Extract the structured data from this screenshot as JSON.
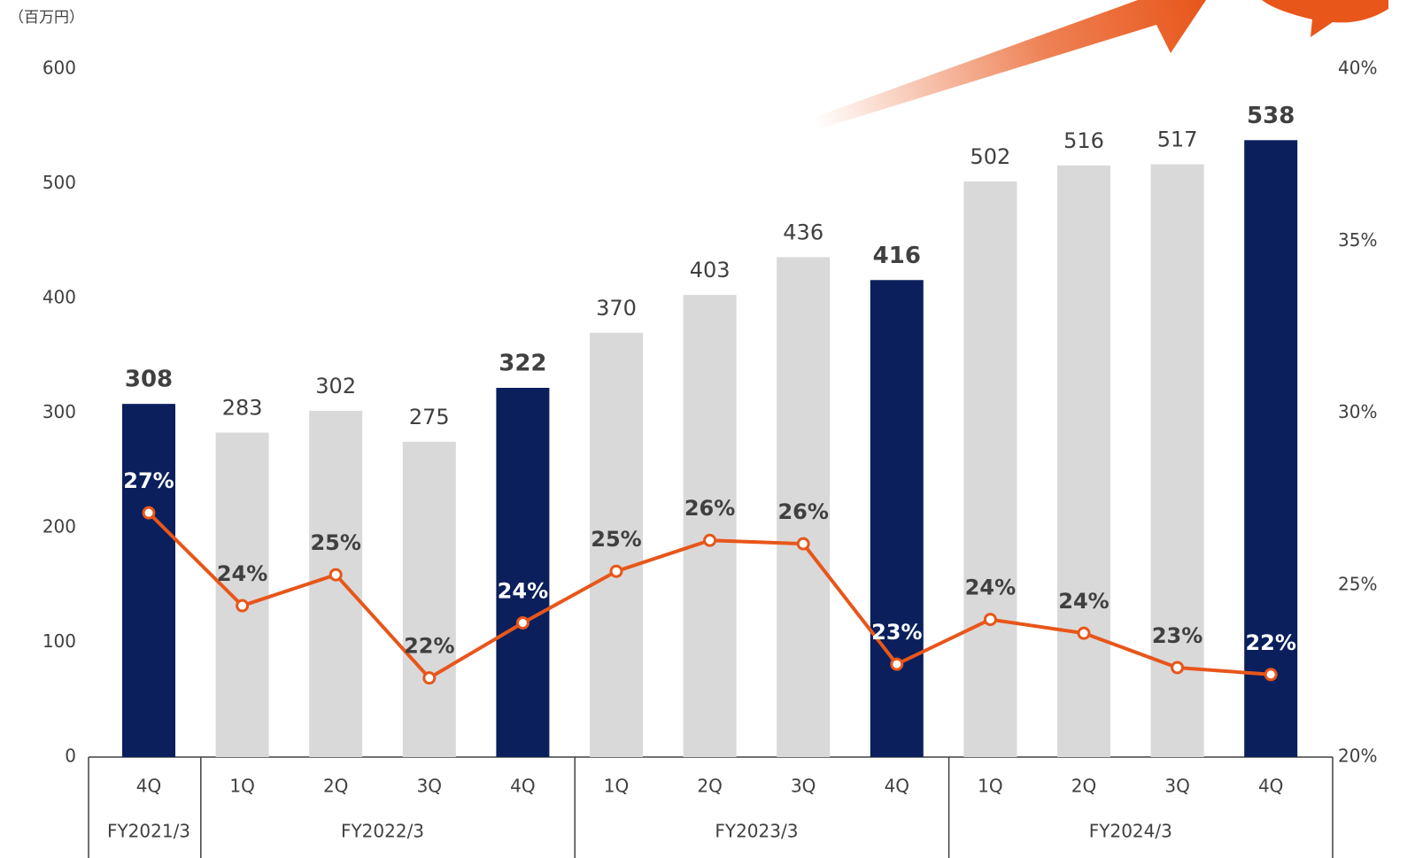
{
  "chart_data": {
    "type": "combo",
    "y_label": "（百万円）",
    "groups": [
      {
        "name": "FY2021/3",
        "categories": [
          "4Q"
        ]
      },
      {
        "name": "FY2022/3",
        "categories": [
          "1Q",
          "2Q",
          "3Q",
          "4Q"
        ]
      },
      {
        "name": "FY2023/3",
        "categories": [
          "1Q",
          "2Q",
          "3Q",
          "4Q"
        ]
      },
      {
        "name": "FY2024/3",
        "categories": [
          "1Q",
          "2Q",
          "3Q",
          "4Q"
        ]
      }
    ],
    "series": [
      {
        "type": "bar",
        "values": [
          308,
          283,
          302,
          275,
          322,
          370,
          403,
          436,
          416,
          502,
          516,
          517,
          538
        ],
        "colors": [
          "#0a1f5c",
          "#d9d9d9",
          "#d9d9d9",
          "#d9d9d9",
          "#0a1f5c",
          "#d9d9d9",
          "#d9d9d9",
          "#d9d9d9",
          "#0a1f5c",
          "#d9d9d9",
          "#d9d9d9",
          "#d9d9d9",
          "#0a1f5c"
        ]
      },
      {
        "type": "line",
        "axis": "y2",
        "color": "#e8561a",
        "values": [
          27.1,
          24.4,
          25.3,
          22.3,
          23.9,
          25.4,
          26.3,
          26.2,
          22.7,
          24.0,
          23.6,
          22.6,
          22.4
        ],
        "value_labels": [
          "27%",
          "24%",
          "25%",
          "22%",
          "24%",
          "25%",
          "26%",
          "26%",
          "23%",
          "24%",
          "24%",
          "23%",
          "22%"
        ]
      }
    ],
    "ylim": [
      0,
      600
    ],
    "yticks": [
      0,
      100,
      200,
      300,
      400,
      500,
      600
    ],
    "y2lim": [
      20,
      40
    ],
    "y2ticks": [
      {
        "value": 20,
        "label": "20%"
      },
      {
        "value": 25,
        "label": "25%"
      },
      {
        "value": 30,
        "label": "30%"
      },
      {
        "value": 35,
        "label": "35%"
      },
      {
        "value": 40,
        "label": "40%"
      }
    ]
  }
}
